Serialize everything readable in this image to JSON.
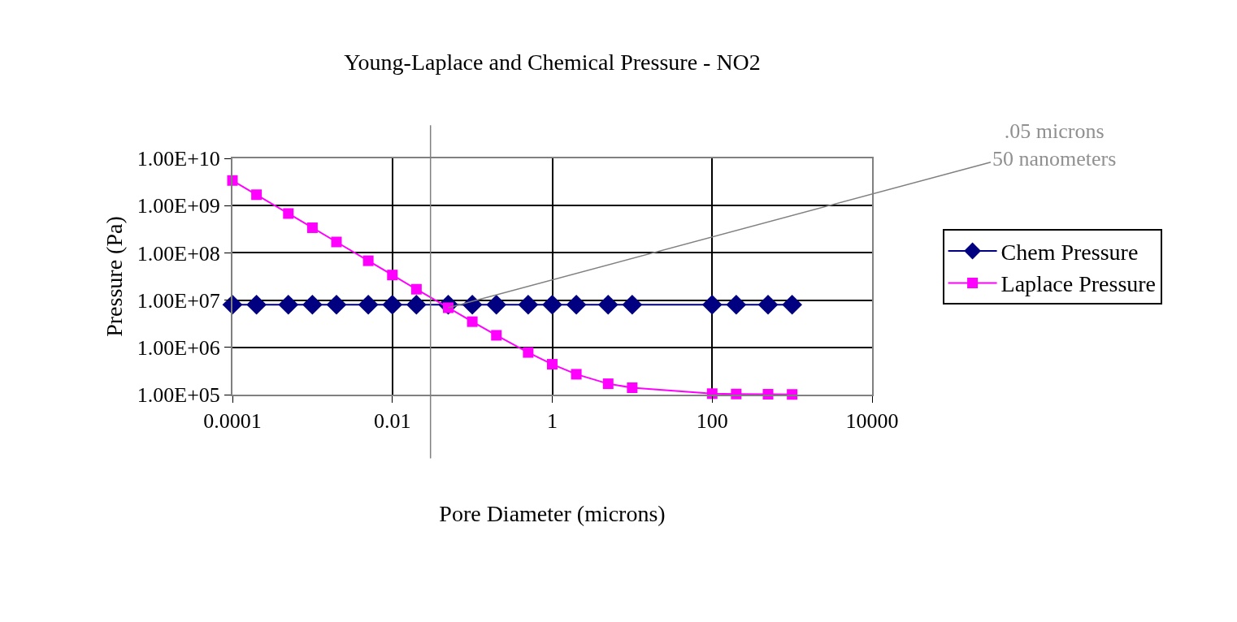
{
  "chart_data": {
    "type": "line",
    "title": "Young-Laplace and Chemical Pressure - NO2",
    "xlabel": "Pore Diameter (microns)",
    "ylabel": "Pressure (Pa)",
    "x": [
      0.0001,
      0.0002,
      0.0005,
      0.001,
      0.002,
      0.005,
      0.01,
      0.02,
      0.05,
      0.1,
      0.2,
      0.5,
      1,
      2,
      5,
      10,
      100,
      200,
      500,
      1000
    ],
    "series": [
      {
        "name": "Chem Pressure",
        "color": "#000080",
        "marker": "diamond",
        "values": [
          8000000.0,
          8000000.0,
          8000000.0,
          8000000.0,
          8000000.0,
          8000000.0,
          8000000.0,
          8000000.0,
          8000000.0,
          8000000.0,
          8000000.0,
          8000000.0,
          8000000.0,
          8000000.0,
          8000000.0,
          8000000.0,
          8000000.0,
          8000000.0,
          8000000.0,
          8000000.0
        ]
      },
      {
        "name": "Laplace Pressure",
        "color": "#ff00ff",
        "marker": "square",
        "values": [
          3400000000.0,
          1700000000.0,
          680000000.0,
          340000000.0,
          170000000.0,
          68000000.0,
          34000000.0,
          17000000.0,
          6900000.0,
          3500000.0,
          1800000.0,
          780000.0,
          440000.0,
          270000.0,
          170000.0,
          140000.0,
          105000.0,
          103000.0,
          102000.0,
          101000.0
        ]
      }
    ],
    "log": "xy",
    "xlim": [
      0.0001,
      10000
    ],
    "xticks": [
      0.0001,
      0.01,
      1,
      100,
      10000
    ],
    "ylim": [
      100000.0,
      10000000000.0
    ],
    "yticks": [
      {
        "value": 100000.0,
        "label": "1.00E+05"
      },
      {
        "value": 1000000.0,
        "label": "1.00E+06"
      },
      {
        "value": 10000000.0,
        "label": "1.00E+07"
      },
      {
        "value": 100000000.0,
        "label": "1.00E+08"
      },
      {
        "value": 1000000000.0,
        "label": "1.00E+09"
      },
      {
        "value": 10000000000.0,
        "label": "1.00E+10"
      }
    ],
    "grid": true,
    "legend": "right",
    "line_style": "solid",
    "ref_lines": [
      {
        "axis": "x",
        "value": 0.03,
        "color": "#808080"
      }
    ],
    "annotations": [
      {
        "text": ".05 microns\n50 nanometers",
        "x": 0.05,
        "y": 6900000.0
      }
    ]
  }
}
